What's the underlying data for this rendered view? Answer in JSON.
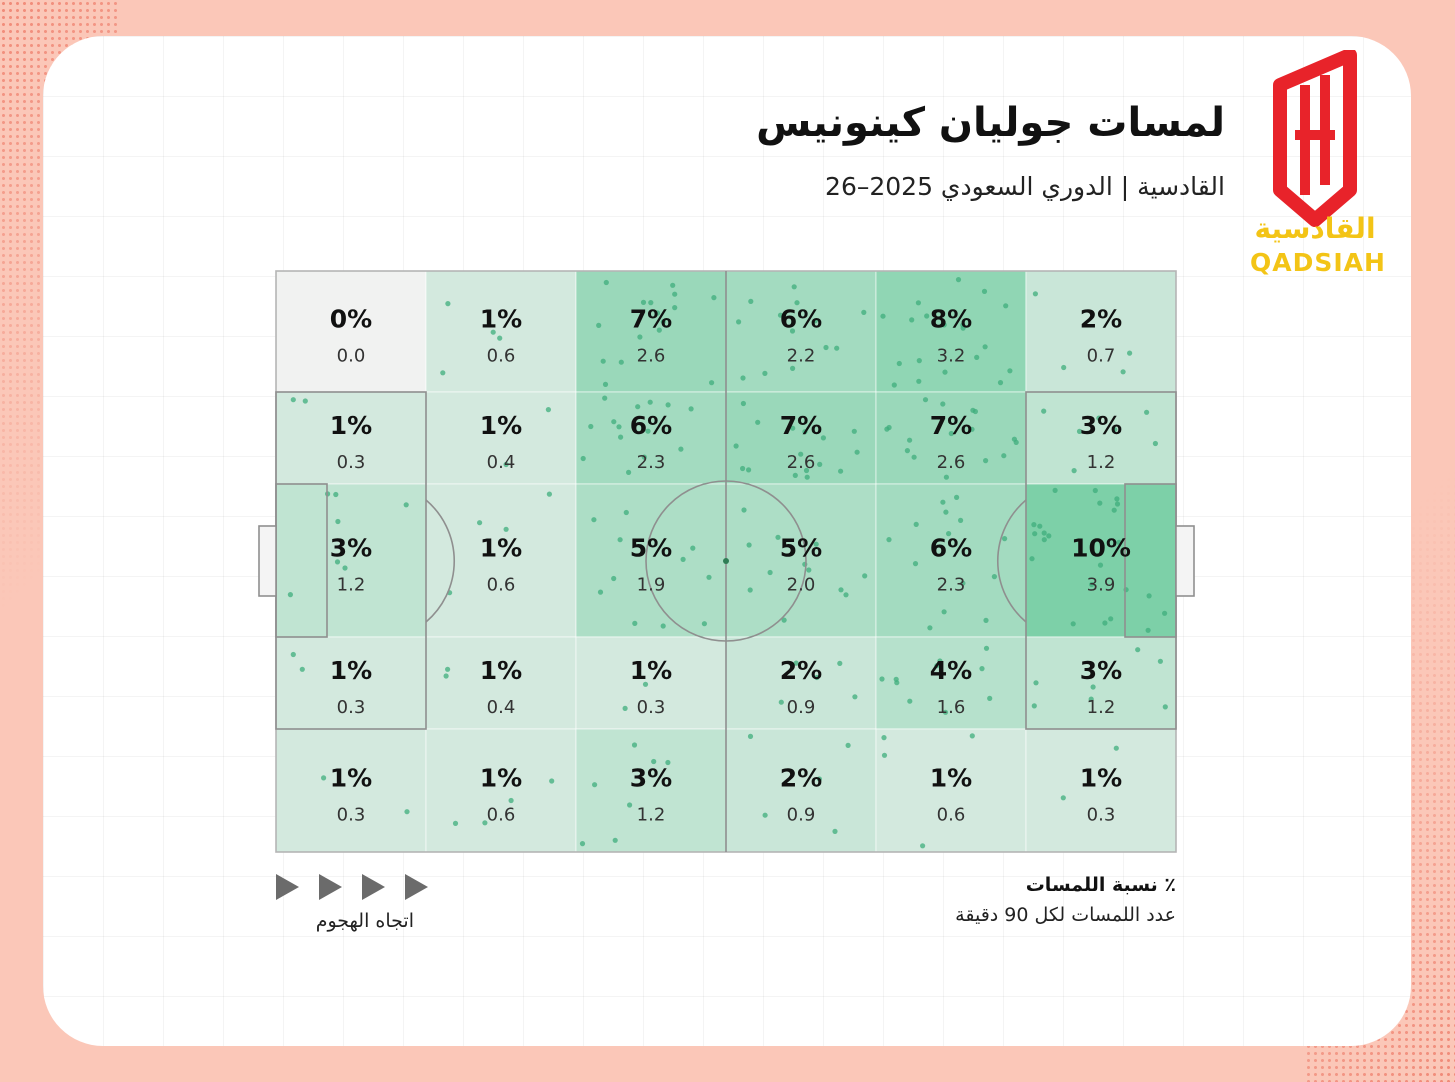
{
  "header": {
    "title": "لمسات جوليان كينونيس",
    "subtitle": "القادسية | الدوري السعودي 2025–26"
  },
  "logo": {
    "text_ar": "القادسية",
    "text_en": "QADSIAH",
    "colors": {
      "red": "#e8232a",
      "yellow": "#f3c416"
    }
  },
  "legend": {
    "percent_label": "٪ نسبة اللمسات",
    "per90_label": "عدد اللمسات لكل 90 دقيقة",
    "attack_direction_label": "اتجاه الهجوم",
    "arrow_icon": "play-triangle-icon"
  },
  "colors": {
    "background": "#fbc7b8",
    "heat_min": "#f1f2f1",
    "heat_max": "#7dd0a8",
    "dots": "#3fae7c"
  },
  "chart_data": {
    "type": "heatmap",
    "title": "لمسات جوليان كينونيس",
    "subtitle": "القادسية | الدوري السعودي 2025–26",
    "attack_direction": "left-to-right",
    "columns": 6,
    "rows": 5,
    "cells": [
      [
        {
          "pct": "0%",
          "val": "0.0"
        },
        {
          "pct": "1%",
          "val": "0.6"
        },
        {
          "pct": "7%",
          "val": "2.6"
        },
        {
          "pct": "6%",
          "val": "2.2"
        },
        {
          "pct": "8%",
          "val": "3.2"
        },
        {
          "pct": "2%",
          "val": "0.7"
        }
      ],
      [
        {
          "pct": "1%",
          "val": "0.3"
        },
        {
          "pct": "1%",
          "val": "0.4"
        },
        {
          "pct": "6%",
          "val": "2.3"
        },
        {
          "pct": "7%",
          "val": "2.6"
        },
        {
          "pct": "7%",
          "val": "2.6"
        },
        {
          "pct": "3%",
          "val": "1.2"
        }
      ],
      [
        {
          "pct": "3%",
          "val": "1.2"
        },
        {
          "pct": "1%",
          "val": "0.6"
        },
        {
          "pct": "5%",
          "val": "1.9"
        },
        {
          "pct": "5%",
          "val": "2.0"
        },
        {
          "pct": "6%",
          "val": "2.3"
        },
        {
          "pct": "10%",
          "val": "3.9"
        }
      ],
      [
        {
          "pct": "1%",
          "val": "0.3"
        },
        {
          "pct": "1%",
          "val": "0.4"
        },
        {
          "pct": "1%",
          "val": "0.3"
        },
        {
          "pct": "2%",
          "val": "0.9"
        },
        {
          "pct": "4%",
          "val": "1.6"
        },
        {
          "pct": "3%",
          "val": "1.2"
        }
      ],
      [
        {
          "pct": "1%",
          "val": "0.3"
        },
        {
          "pct": "1%",
          "val": "0.6"
        },
        {
          "pct": "3%",
          "val": "1.2"
        },
        {
          "pct": "2%",
          "val": "0.9"
        },
        {
          "pct": "1%",
          "val": "0.6"
        },
        {
          "pct": "1%",
          "val": "0.3"
        }
      ]
    ]
  }
}
